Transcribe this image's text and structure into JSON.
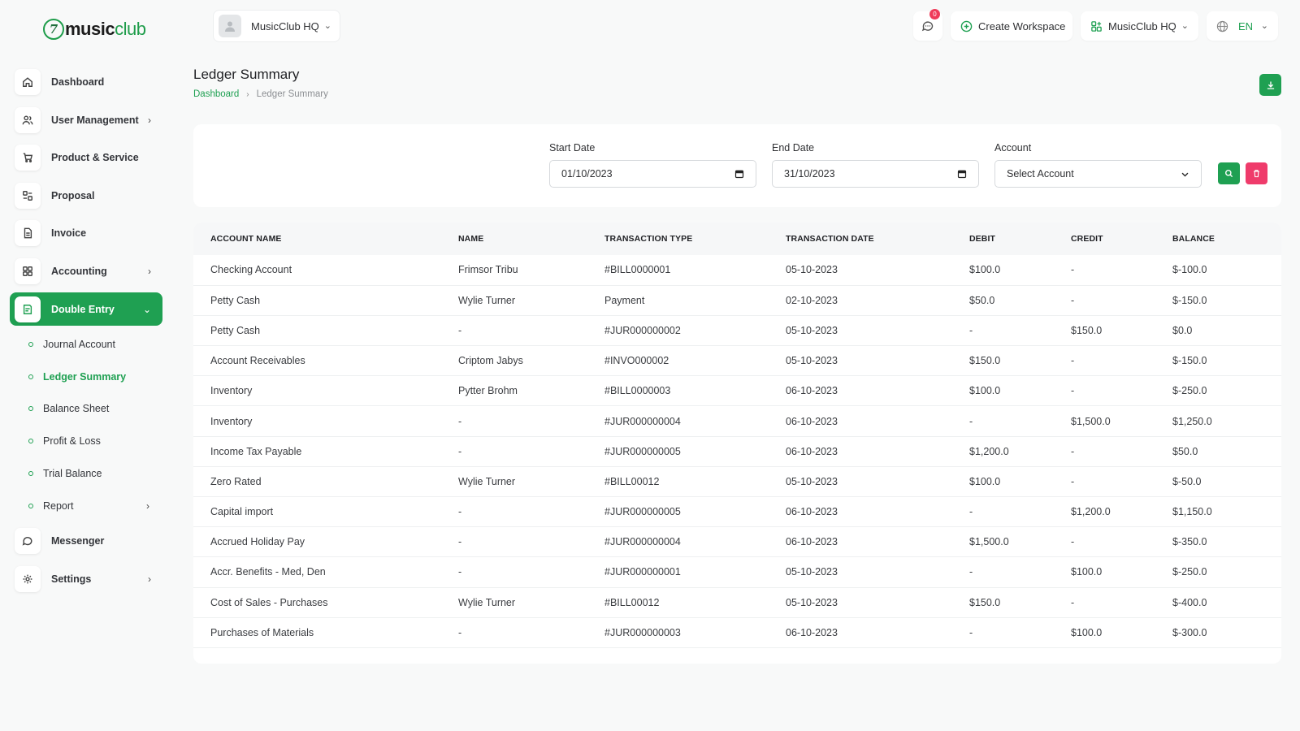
{
  "brand": {
    "logo_part1": "music",
    "logo_part2": "club"
  },
  "topbar": {
    "workspace_selector": "MusicClub HQ",
    "message_count": "0",
    "create_workspace": "Create Workspace",
    "workspace_menu": "MusicClub HQ",
    "language": "EN"
  },
  "sidebar": {
    "items": [
      {
        "label": "Dashboard"
      },
      {
        "label": "User Management"
      },
      {
        "label": "Product & Service"
      },
      {
        "label": "Proposal"
      },
      {
        "label": "Invoice"
      },
      {
        "label": "Accounting"
      },
      {
        "label": "Double Entry"
      },
      {
        "label": "Messenger"
      },
      {
        "label": "Settings"
      }
    ],
    "sub_items": [
      {
        "label": "Journal Account"
      },
      {
        "label": "Ledger Summary"
      },
      {
        "label": "Balance Sheet"
      },
      {
        "label": "Profit & Loss"
      },
      {
        "label": "Trial Balance"
      },
      {
        "label": "Report"
      }
    ]
  },
  "page": {
    "title": "Ledger Summary",
    "breadcrumb": {
      "home": "Dashboard",
      "current": "Ledger Summary"
    }
  },
  "filters": {
    "start_label": "Start Date",
    "start_value": "01/10/2023",
    "end_label": "End Date",
    "end_value": "31/10/2023",
    "account_label": "Account",
    "account_value": "Select Account"
  },
  "table": {
    "columns": [
      "ACCOUNT NAME",
      "NAME",
      "TRANSACTION TYPE",
      "TRANSACTION DATE",
      "DEBIT",
      "CREDIT",
      "BALANCE"
    ],
    "rows": [
      [
        "Checking Account",
        "Frimsor Tribu",
        "#BILL0000001",
        "05-10-2023",
        "$100.0",
        "-",
        "$-100.0"
      ],
      [
        "Petty Cash",
        "Wylie Turner",
        "Payment",
        "02-10-2023",
        "$50.0",
        "-",
        "$-150.0"
      ],
      [
        "Petty Cash",
        "-",
        "#JUR000000002",
        "05-10-2023",
        "-",
        "$150.0",
        "$0.0"
      ],
      [
        "Account Receivables",
        "Criptom Jabys",
        "#INVO000002",
        "05-10-2023",
        "$150.0",
        "-",
        "$-150.0"
      ],
      [
        "Inventory",
        "Pytter Brohm",
        "#BILL0000003",
        "06-10-2023",
        "$100.0",
        "-",
        "$-250.0"
      ],
      [
        "Inventory",
        "-",
        "#JUR000000004",
        "06-10-2023",
        "-",
        "$1,500.0",
        "$1,250.0"
      ],
      [
        "Income Tax Payable",
        "-",
        "#JUR000000005",
        "06-10-2023",
        "$1,200.0",
        "-",
        "$50.0"
      ],
      [
        "Zero Rated",
        "Wylie Turner",
        "#BILL00012",
        "05-10-2023",
        "$100.0",
        "-",
        "$-50.0"
      ],
      [
        "Capital import",
        "-",
        "#JUR000000005",
        "06-10-2023",
        "-",
        "$1,200.0",
        "$1,150.0"
      ],
      [
        "Accrued Holiday Pay",
        "-",
        "#JUR000000004",
        "06-10-2023",
        "$1,500.0",
        "-",
        "$-350.0"
      ],
      [
        "Accr. Benefits - Med, Den",
        "-",
        "#JUR000000001",
        "05-10-2023",
        "-",
        "$100.0",
        "$-250.0"
      ],
      [
        "Cost of Sales - Purchases",
        "Wylie Turner",
        "#BILL00012",
        "05-10-2023",
        "$150.0",
        "-",
        "$-400.0"
      ],
      [
        "Purchases of Materials",
        "-",
        "#JUR000000003",
        "06-10-2023",
        "-",
        "$100.0",
        "$-300.0"
      ]
    ]
  },
  "colors": {
    "accent": "#1fa052",
    "danger": "#ef3b6b",
    "badge": "#ef3b5a"
  }
}
